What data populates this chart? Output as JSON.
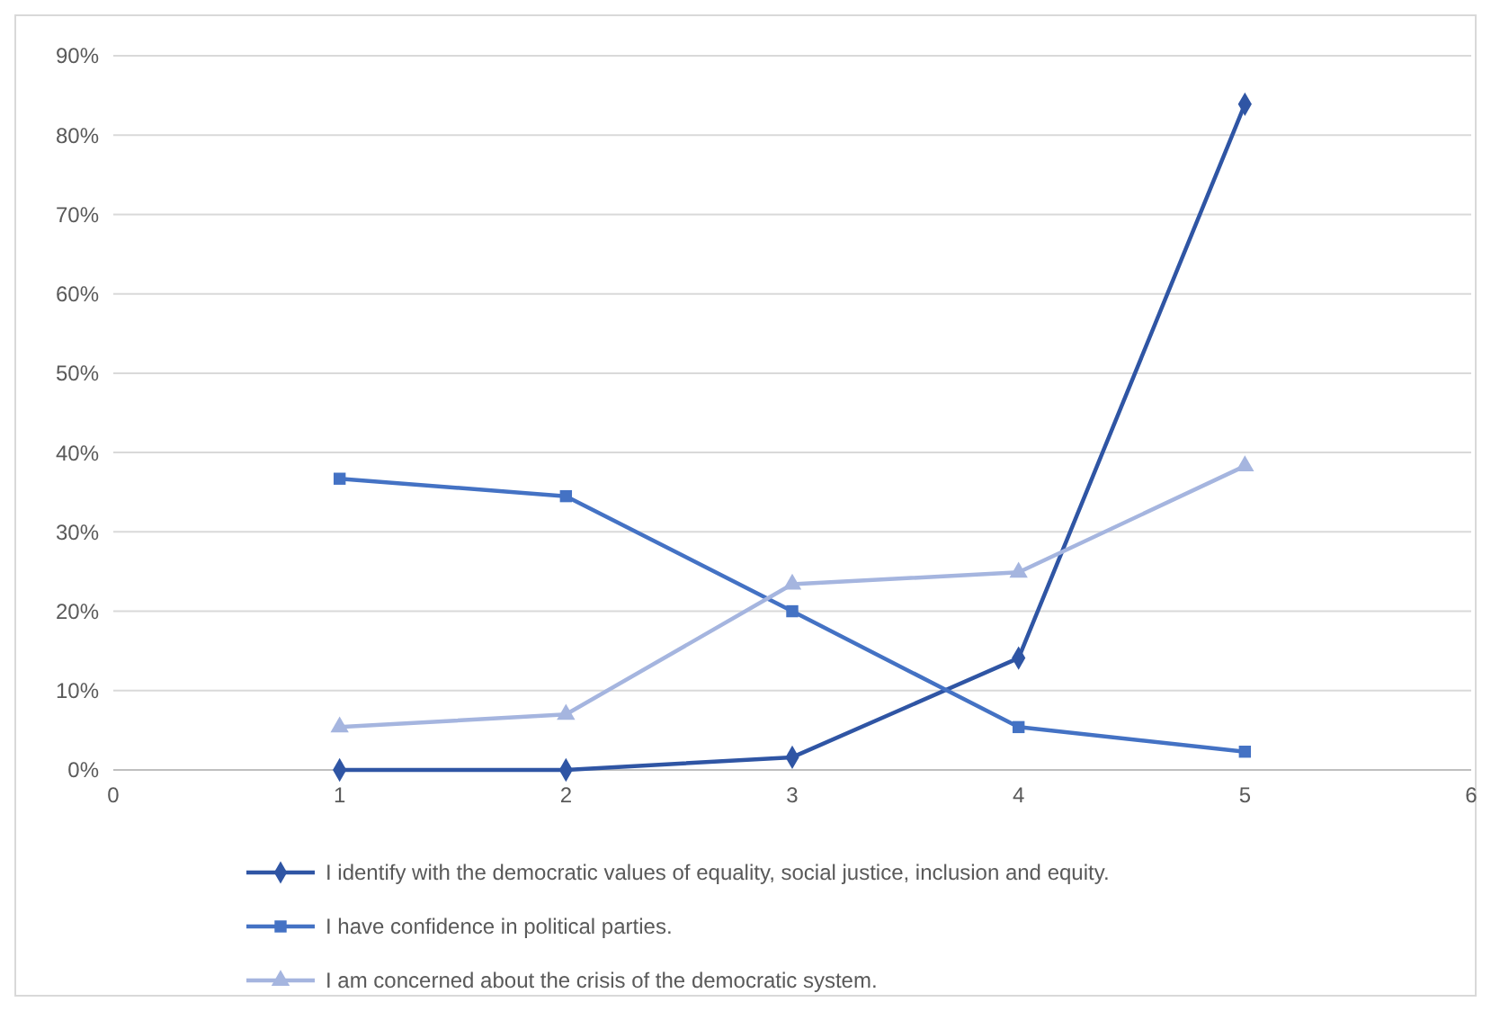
{
  "chart_data": {
    "type": "line",
    "x": [
      1,
      2,
      3,
      4,
      5
    ],
    "series": [
      {
        "name": "I identify with the democratic values of equality, social justice, inclusion and equity.",
        "color": "#2f55a4",
        "marker": "diamond",
        "values": [
          0,
          0,
          1.6,
          14.1,
          83.9
        ]
      },
      {
        "name": "I have confidence in political parties.",
        "color": "#4472c4",
        "marker": "square",
        "values": [
          36.7,
          34.5,
          20,
          5.4,
          2.3
        ]
      },
      {
        "name": "I am concerned about the crisis of the democratic system.",
        "color": "#a5b5df",
        "marker": "triangle",
        "values": [
          5.4,
          7,
          23.4,
          24.9,
          38.3
        ]
      }
    ],
    "xlim": [
      0,
      6
    ],
    "xticks": [
      0,
      1,
      2,
      3,
      4,
      5,
      6
    ],
    "ylim": [
      0,
      90
    ],
    "yticks": [
      {
        "value": 0,
        "label": "0%"
      },
      {
        "value": 10,
        "label": "10%"
      },
      {
        "value": 20,
        "label": "20%"
      },
      {
        "value": 30,
        "label": "30%"
      },
      {
        "value": 40,
        "label": "40%"
      },
      {
        "value": 50,
        "label": "50%"
      },
      {
        "value": 60,
        "label": "60%"
      },
      {
        "value": 70,
        "label": "70%"
      },
      {
        "value": 80,
        "label": "80%"
      },
      {
        "value": 90,
        "label": "90%"
      }
    ],
    "grid": "y",
    "legend": "bottom",
    "line_style": "solid"
  }
}
